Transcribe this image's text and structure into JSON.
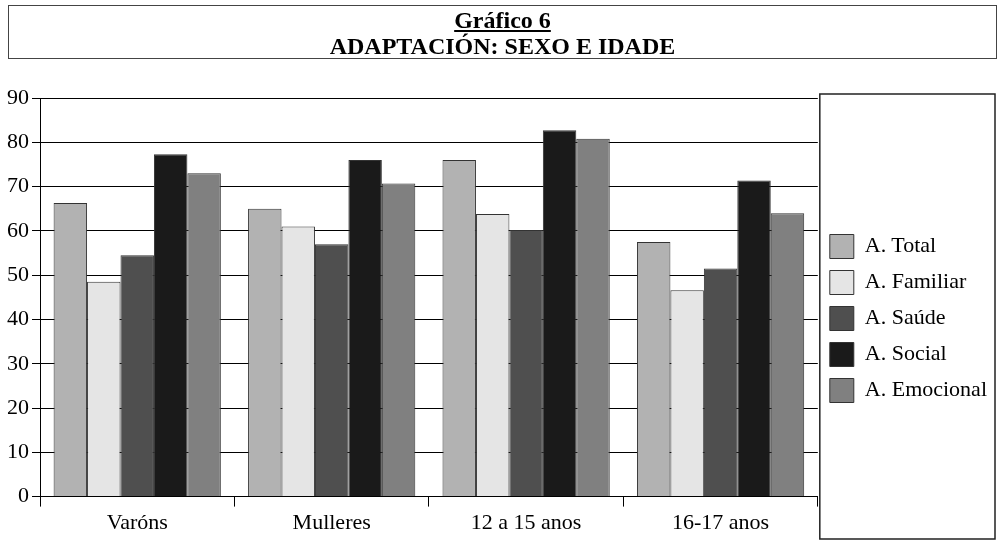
{
  "chart_data": {
    "type": "bar",
    "title": "Gráfico 6",
    "subtitle": "ADAPTACIÓN: SEXO E IDADE",
    "categories": [
      "Varóns",
      "Mulleres",
      "12 a 15 anos",
      "16-17 anos"
    ],
    "series": [
      {
        "name": "A. Total",
        "color": "#b2b2b2",
        "values": [
          66.3,
          65,
          76,
          57.5
        ]
      },
      {
        "name": "A. Familiar",
        "color": "#e5e5e5",
        "values": [
          48.5,
          61,
          63.8,
          46.6
        ]
      },
      {
        "name": "A. Saúde",
        "color": "#4f4f4f",
        "values": [
          54.5,
          57,
          60.2,
          51.5
        ]
      },
      {
        "name": "A. Social",
        "color": "#1a1a1a",
        "values": [
          77.3,
          76,
          82.7,
          71.4
        ]
      },
      {
        "name": "A. Emocional",
        "color": "#808080",
        "values": [
          73,
          70.7,
          80.8,
          64
        ]
      }
    ],
    "ylim": [
      0,
      90
    ],
    "yticks": [
      0,
      10,
      20,
      30,
      40,
      50,
      60,
      70,
      80,
      90
    ],
    "grid": "y",
    "legend": "right"
  }
}
